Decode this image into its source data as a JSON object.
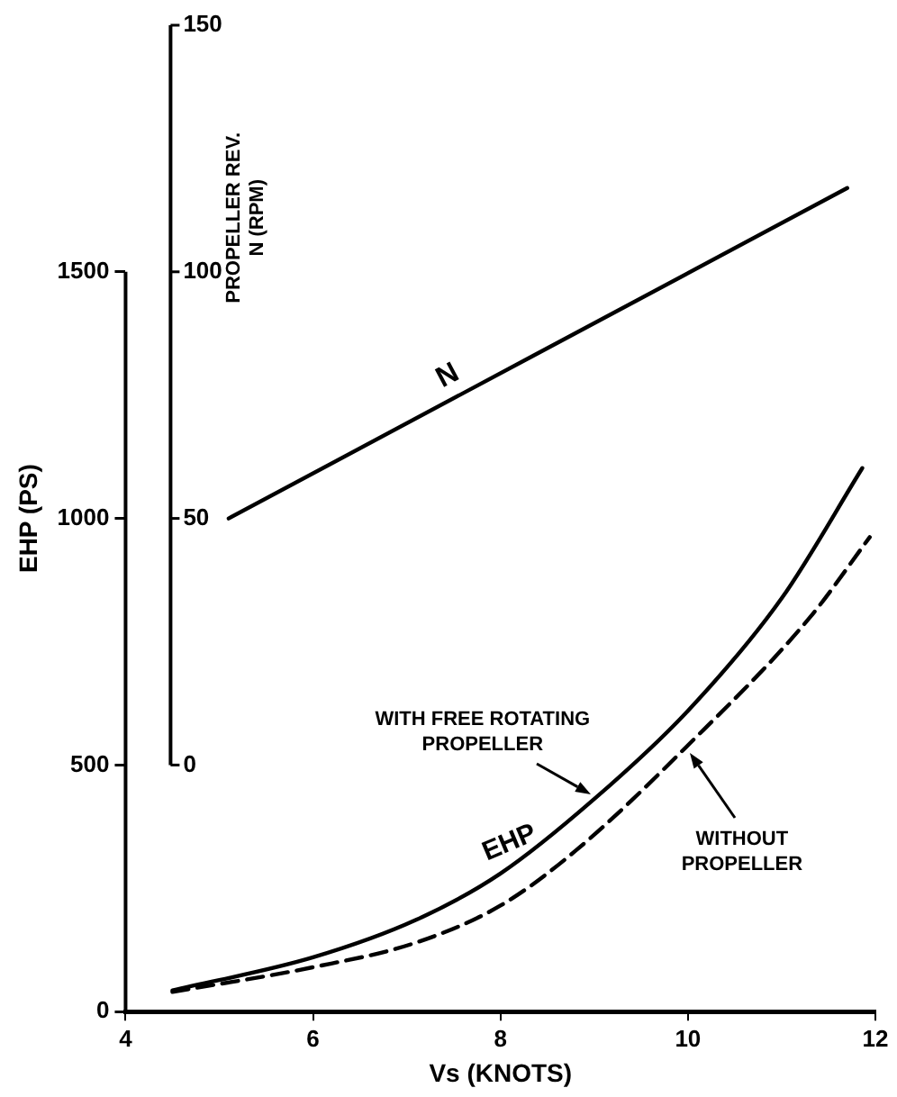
{
  "chart_data": {
    "type": "line",
    "xlabel": "Vs (KNOTS)",
    "ylabel": "EHP (PS)",
    "y2label": "PROPELLER REV. N (RPM)",
    "xlim": [
      4,
      12
    ],
    "xticks": [
      4,
      6,
      8,
      10,
      12
    ],
    "ylim": [
      0,
      2000
    ],
    "yticks": [
      0,
      500,
      1000,
      1500
    ],
    "y2lim": [
      -50,
      150
    ],
    "y2ticks": [
      0,
      50,
      100,
      150
    ],
    "series": [
      {
        "name": "N",
        "color": "#000000",
        "axis": "y2",
        "x": [
          5.1,
          11.7
        ],
        "values": [
          50,
          117
        ],
        "line_style": "solid"
      },
      {
        "name": "WITH FREE ROTATING PROPELLER",
        "color": "#000000",
        "x": [
          4.5,
          6,
          7.1,
          8,
          9,
          10,
          11,
          11.86
        ],
        "values": [
          43,
          110,
          186,
          280,
          431,
          610,
          838,
          1102
        ],
        "line_style": "solid"
      },
      {
        "name": "WITHOUT PROPELLER",
        "color": "#000000",
        "x": [
          4.5,
          6,
          7.1,
          8,
          8.8,
          10,
          11.3,
          11.94
        ],
        "values": [
          40,
          90,
          140,
          215,
          326,
          540,
          799,
          962
        ],
        "line_style": "dashed"
      }
    ],
    "annotations": [
      "EHP"
    ],
    "grid": false,
    "legend": false,
    "marker": "none"
  }
}
